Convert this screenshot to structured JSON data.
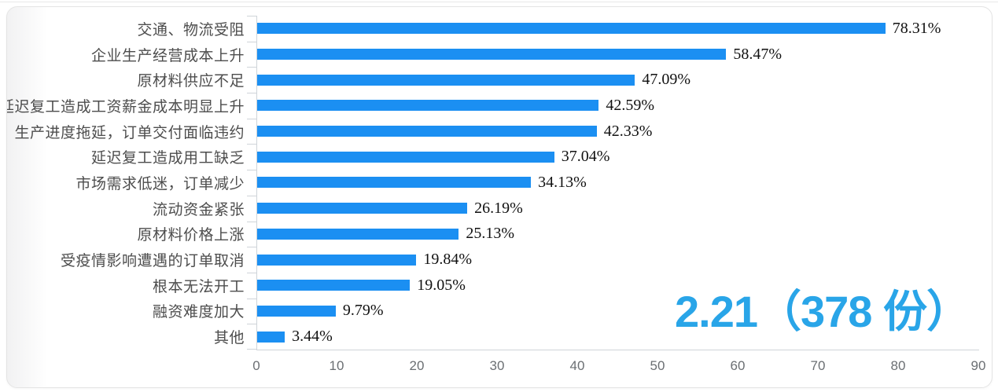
{
  "chart_data": {
    "type": "bar",
    "orientation": "horizontal",
    "title": "",
    "xlabel": "",
    "ylabel": "",
    "categories": [
      "交通、物流受阻",
      "企业生产经营成本上升",
      "原材料供应不足",
      "延迟复工造成工资薪金成本明显上升",
      "生产进度拖延，订单交付面临违约",
      "延迟复工造成用工缺乏",
      "市场需求低迷，订单减少",
      "流动资金紧张",
      "原材料价格上涨",
      "受疫情影响遭遇的订单取消",
      "根本无法开工",
      "融资难度加大",
      "其他"
    ],
    "values": [
      78.31,
      58.47,
      47.09,
      42.59,
      42.33,
      37.04,
      34.13,
      26.19,
      25.13,
      19.84,
      19.05,
      9.79,
      3.44
    ],
    "value_labels": [
      "78.31%",
      "58.47%",
      "47.09%",
      "42.59%",
      "42.33%",
      "37.04%",
      "34.13%",
      "26.19%",
      "25.13%",
      "19.84%",
      "19.05%",
      "9.79%",
      "3.44%"
    ],
    "xlim": [
      0,
      90
    ],
    "x_ticks": [
      "0",
      "10",
      "20",
      "30",
      "40",
      "50",
      "60",
      "70",
      "80",
      "90"
    ],
    "grid": false,
    "legend": false,
    "bar_color": "#1b8ff2",
    "annotation": {
      "text": "2.21（378 份）",
      "color": "#29a5e8"
    }
  },
  "colors": {
    "category_label": "#4d4d4d",
    "value_label": "#111111",
    "axis_line": "#cfd4d9",
    "tick_label": "#6b6f73",
    "card_border": "#e4e4e4"
  }
}
